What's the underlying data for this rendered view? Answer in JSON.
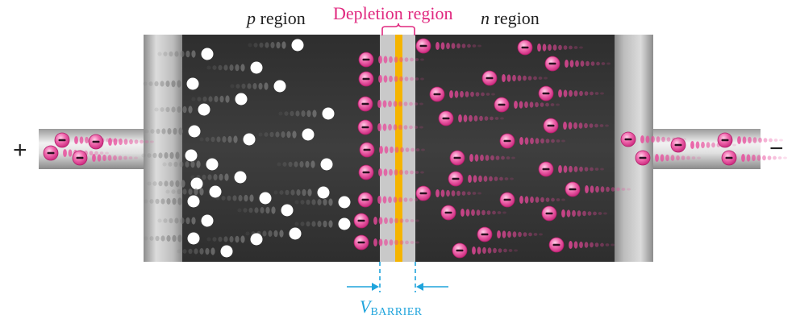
{
  "labels": {
    "p_letter": "p",
    "p_word": " region",
    "depletion": "Depletion region",
    "n_letter": "n",
    "n_word": " region",
    "plus": "+",
    "minus": "−",
    "vbarrier_v": "V",
    "vbarrier_sub": "BARRIER"
  },
  "colors": {
    "background": "#ffffff",
    "semiconductor": "#3a3a3a",
    "depletion_band": "#c9c9c9",
    "junction_stripe": "#f5b400",
    "electron": "#e8489a",
    "hole": "#ffffff",
    "dimension": "#1fa4dc",
    "depletion_label": "#e0287f"
  },
  "icons": {
    "electron": "minus-in-pink-circle",
    "hole": "white-circle"
  }
}
